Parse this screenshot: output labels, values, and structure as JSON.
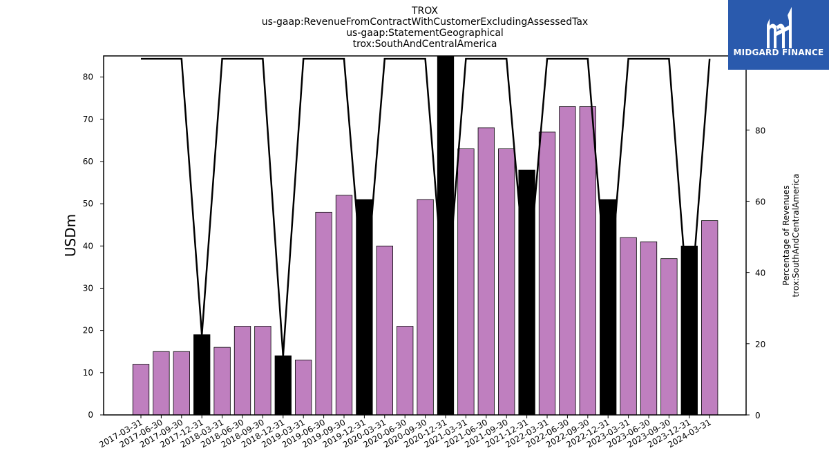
{
  "title_lines": [
    "TROX",
    "us-gaap:RevenueFromContractWithCustomerExcludingAssessedTax",
    "us-gaap:StatementGeographical",
    "trox:SouthAndCentralAmerica"
  ],
  "logo": {
    "text": "MIDGARD FINANCE",
    "bg_color": "#2a5aad"
  },
  "colors": {
    "bar_default": "#bf7fbf",
    "bar_highlight": "#000000",
    "line": "#000000"
  },
  "chart_data": {
    "type": "bar",
    "categories": [
      "2017-03-31",
      "2017-06-30",
      "2017-09-30",
      "2017-12-31",
      "2018-03-31",
      "2018-06-30",
      "2018-09-30",
      "2018-12-31",
      "2019-03-31",
      "2019-06-30",
      "2019-09-30",
      "2019-12-31",
      "2020-03-31",
      "2020-06-30",
      "2020-09-30",
      "2020-12-31",
      "2021-03-31",
      "2021-06-30",
      "2021-09-30",
      "2021-12-31",
      "2022-03-31",
      "2022-06-30",
      "2022-09-30",
      "2022-12-31",
      "2023-03-31",
      "2023-06-30",
      "2023-09-30",
      "2023-12-31",
      "2024-03-31"
    ],
    "values": [
      12,
      15,
      15,
      19,
      16,
      21,
      21,
      14,
      13,
      48,
      52,
      51,
      40,
      21,
      51,
      85,
      63,
      68,
      63,
      58,
      67,
      73,
      73,
      51,
      42,
      41,
      37,
      40,
      46
    ],
    "highlight": [
      false,
      false,
      false,
      true,
      false,
      false,
      false,
      true,
      false,
      false,
      false,
      true,
      false,
      false,
      false,
      true,
      false,
      false,
      false,
      true,
      false,
      false,
      false,
      true,
      false,
      false,
      false,
      true,
      false
    ],
    "line_values": [
      100,
      100,
      100,
      22.4,
      100,
      100,
      100,
      16.5,
      100,
      100,
      100,
      30,
      100,
      100,
      100,
      28,
      100,
      100,
      100,
      34,
      100,
      100,
      100,
      30,
      100,
      100,
      100,
      25.6,
      100
    ],
    "ylabel_left": "USDm",
    "ylabel_right": [
      "Percentage of Revenues",
      "trox:SouthAndCentralAmerica"
    ],
    "ylim_left": [
      0,
      85
    ],
    "ylim_right": [
      0,
      100.8
    ],
    "yticks_left": [
      0,
      10,
      20,
      30,
      40,
      50,
      60,
      70,
      80
    ],
    "yticks_right": [
      0,
      20,
      40,
      60,
      80,
      100
    ]
  }
}
